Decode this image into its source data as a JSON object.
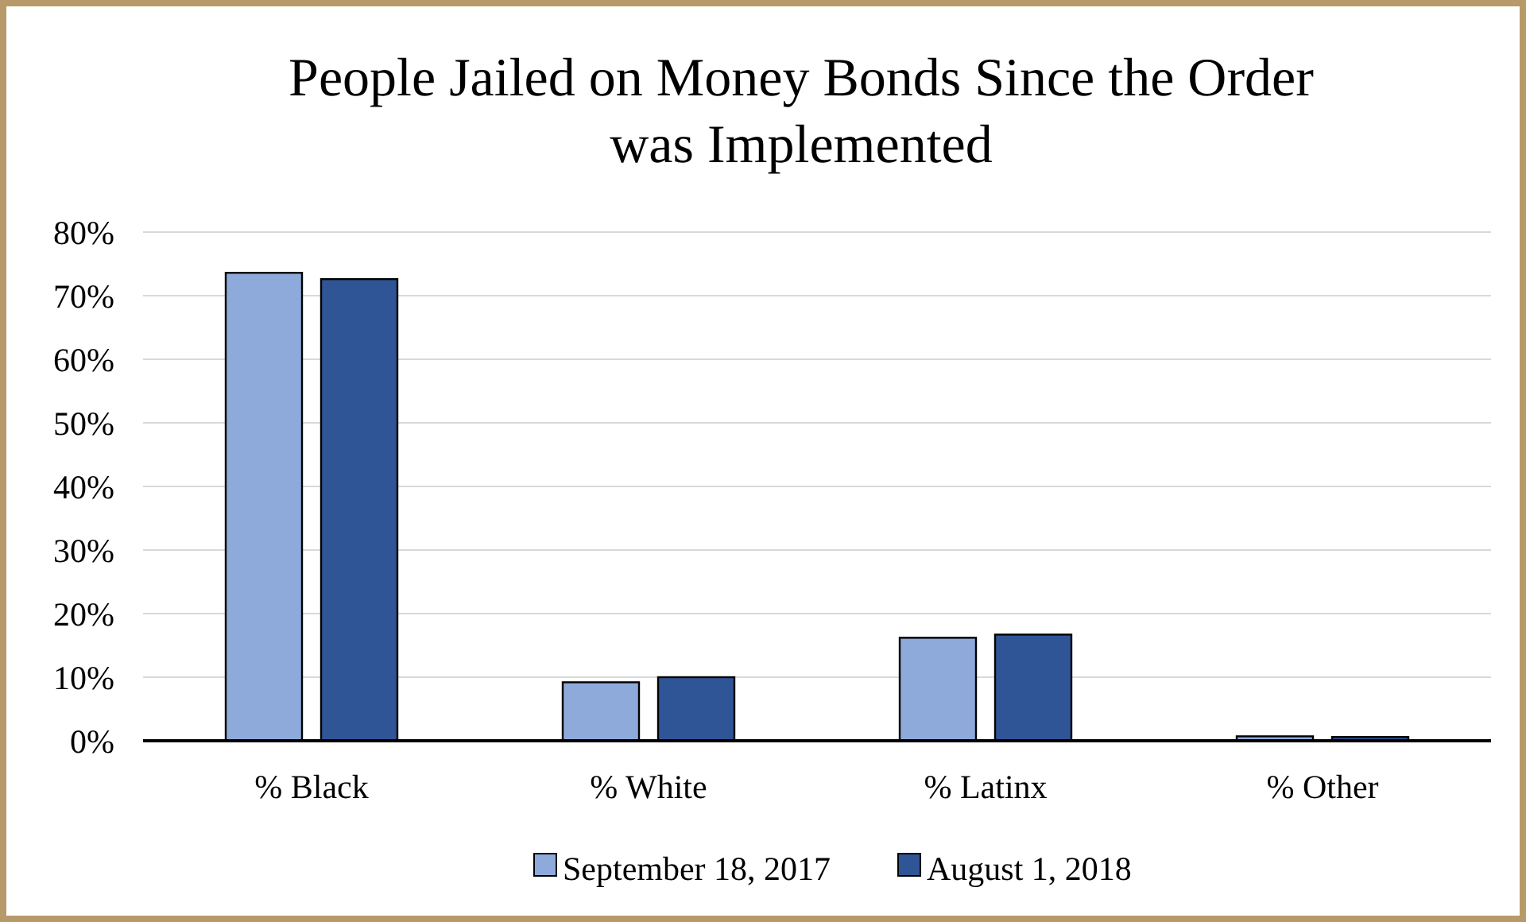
{
  "chart_data": {
    "type": "bar",
    "title": "People Jailed on Money Bonds Since the Order\nwas Implemented",
    "categories": [
      "% Black",
      "% White",
      "% Latinx",
      "% Other"
    ],
    "series": [
      {
        "name": "September 18, 2017",
        "color": "#8eaadb",
        "values": [
          73.6,
          9.2,
          16.2,
          0.7
        ]
      },
      {
        "name": "August 1, 2018",
        "color": "#2f5597",
        "values": [
          72.6,
          10.0,
          16.7,
          0.6
        ]
      }
    ],
    "ylim": [
      0,
      80
    ],
    "yticks": [
      {
        "value": 0,
        "label": "0%"
      },
      {
        "value": 10,
        "label": "10%"
      },
      {
        "value": 20,
        "label": "20%"
      },
      {
        "value": 30,
        "label": "30%"
      },
      {
        "value": 40,
        "label": "40%"
      },
      {
        "value": 50,
        "label": "50%"
      },
      {
        "value": 60,
        "label": "60%"
      },
      {
        "value": 70,
        "label": "70%"
      },
      {
        "value": 80,
        "label": "80%"
      }
    ],
    "grid": "y",
    "legend": "bottom"
  }
}
